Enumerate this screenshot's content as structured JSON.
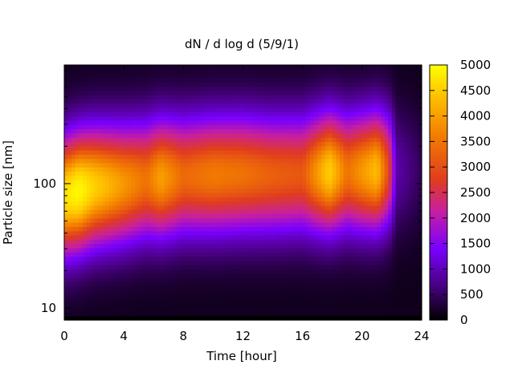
{
  "chart_data": {
    "type": "heatmap",
    "title": "dN / d log d (5/9/1)",
    "xlabel": "Time [hour]",
    "ylabel": "Particle size [nm]",
    "xlim": [
      0,
      24
    ],
    "ylim": [
      8,
      900
    ],
    "yscale": "log",
    "xticks": [
      0,
      4,
      8,
      12,
      16,
      20,
      24
    ],
    "yticks": [
      10,
      100
    ],
    "colorbar": {
      "min": 0,
      "max": 5000,
      "ticks": [
        0,
        500,
        1000,
        1500,
        2000,
        2500,
        3000,
        3500,
        4000,
        4500,
        5000
      ],
      "palette": [
        "#000000",
        "#4b0086",
        "#7a00ff",
        "#c8209e",
        "#e03c1e",
        "#f27c00",
        "#ffc200",
        "#ffff00"
      ]
    },
    "peak_diameter_nm": [
      {
        "hour": 0,
        "d": 80
      },
      {
        "hour": 2,
        "d": 95
      },
      {
        "hour": 4,
        "d": 100
      },
      {
        "hour": 6,
        "d": 110
      },
      {
        "hour": 8,
        "d": 115
      },
      {
        "hour": 10,
        "d": 118
      },
      {
        "hour": 12,
        "d": 120
      },
      {
        "hour": 14,
        "d": 118
      },
      {
        "hour": 16,
        "d": 120
      },
      {
        "hour": 18,
        "d": 125
      },
      {
        "hour": 20,
        "d": 125
      },
      {
        "hour": 22,
        "d": 130
      },
      {
        "hour": 24,
        "d": 130
      }
    ],
    "peak_concentration": [
      {
        "hour": 0,
        "v": 4500
      },
      {
        "hour": 1,
        "v": 4800
      },
      {
        "hour": 2,
        "v": 4300
      },
      {
        "hour": 4,
        "v": 3700
      },
      {
        "hour": 5.5,
        "v": 3300
      },
      {
        "hour": 6.5,
        "v": 3800
      },
      {
        "hour": 8,
        "v": 3200
      },
      {
        "hour": 10,
        "v": 3400
      },
      {
        "hour": 12,
        "v": 3300
      },
      {
        "hour": 14,
        "v": 3100
      },
      {
        "hour": 16,
        "v": 3000
      },
      {
        "hour": 17.8,
        "v": 4300
      },
      {
        "hour": 19,
        "v": 3300
      },
      {
        "hour": 21,
        "v": 4100
      },
      {
        "hour": 21.8,
        "v": 2800
      },
      {
        "hour": 22.3,
        "v": 800
      },
      {
        "hour": 24,
        "v": 300
      }
    ]
  }
}
